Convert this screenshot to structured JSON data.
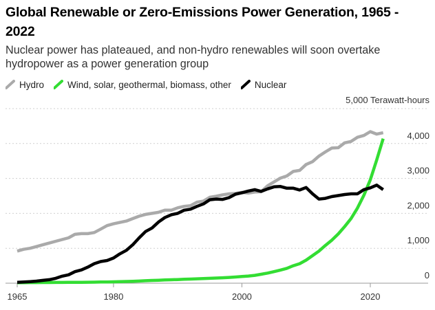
{
  "chart_data": {
    "type": "line",
    "title": "Global Renewable or Zero-Emissions Power Generation, 1965 - 2022",
    "subtitle": "Nuclear power has plateaued, and non-hydro renewables will soon overtake hydropower as a power generation group",
    "ylabel": "5,000 Terawatt-hours",
    "xlabel": "",
    "xlim": [
      1965,
      2029
    ],
    "ylim": [
      0,
      5000
    ],
    "x_ticks": [
      1965,
      1980,
      2000,
      2020
    ],
    "y_ticks": [
      0,
      1000,
      2000,
      3000,
      4000
    ],
    "y_tick_labels": [
      "0",
      "1,000",
      "2,000",
      "3,000",
      "4,000"
    ],
    "grid": true,
    "legend_position": "top-left",
    "x": [
      1965,
      1966,
      1967,
      1968,
      1969,
      1970,
      1971,
      1972,
      1973,
      1974,
      1975,
      1976,
      1977,
      1978,
      1979,
      1980,
      1981,
      1982,
      1983,
      1984,
      1985,
      1986,
      1987,
      1988,
      1989,
      1990,
      1991,
      1992,
      1993,
      1994,
      1995,
      1996,
      1997,
      1998,
      1999,
      2000,
      2001,
      2002,
      2003,
      2004,
      2005,
      2006,
      2007,
      2008,
      2009,
      2010,
      2011,
      2012,
      2013,
      2014,
      2015,
      2016,
      2017,
      2018,
      2019,
      2020,
      2021,
      2022
    ],
    "series": [
      {
        "name": "Hydro",
        "color": "#aaaaaa",
        "values": [
          920,
          970,
          1000,
          1050,
          1100,
          1150,
          1200,
          1250,
          1300,
          1400,
          1420,
          1420,
          1450,
          1550,
          1650,
          1700,
          1740,
          1780,
          1850,
          1920,
          1970,
          2000,
          2030,
          2090,
          2090,
          2160,
          2200,
          2220,
          2320,
          2350,
          2460,
          2490,
          2530,
          2560,
          2570,
          2600,
          2580,
          2610,
          2620,
          2790,
          2900,
          3010,
          3070,
          3200,
          3230,
          3400,
          3480,
          3640,
          3760,
          3870,
          3880,
          4020,
          4060,
          4180,
          4230,
          4340,
          4270,
          4310
        ]
      },
      {
        "name": "Wind, solar, geothermal, biomass, other",
        "color": "#33dd33",
        "values": [
          15,
          16,
          17,
          18,
          19,
          20,
          21,
          22,
          23,
          24,
          26,
          28,
          30,
          33,
          36,
          40,
          45,
          50,
          55,
          62,
          70,
          78,
          85,
          92,
          98,
          105,
          112,
          118,
          125,
          132,
          140,
          148,
          156,
          166,
          178,
          190,
          205,
          225,
          255,
          290,
          330,
          375,
          425,
          500,
          560,
          660,
          790,
          920,
          1080,
          1230,
          1410,
          1620,
          1850,
          2150,
          2520,
          2960,
          3530,
          4140
        ]
      },
      {
        "name": "Nuclear",
        "color": "#000000",
        "values": [
          25,
          35,
          45,
          60,
          80,
          100,
          140,
          200,
          240,
          330,
          380,
          460,
          560,
          620,
          650,
          720,
          840,
          940,
          1100,
          1300,
          1480,
          1580,
          1750,
          1880,
          1960,
          2000,
          2090,
          2120,
          2200,
          2270,
          2390,
          2410,
          2400,
          2450,
          2550,
          2590,
          2640,
          2680,
          2630,
          2700,
          2760,
          2770,
          2720,
          2720,
          2670,
          2740,
          2560,
          2410,
          2430,
          2480,
          2510,
          2540,
          2560,
          2560,
          2680,
          2730,
          2810,
          2680
        ]
      }
    ]
  }
}
